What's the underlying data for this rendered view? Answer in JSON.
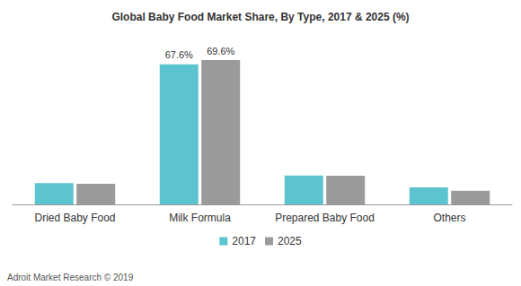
{
  "chart_data": {
    "type": "bar",
    "title": "Global Baby Food Market Share, By Type, 2017 & 2025 (%)",
    "categories": [
      "Dried Baby Food",
      "Milk Formula",
      "Prepared Baby Food",
      "Others"
    ],
    "series": [
      {
        "name": "2017",
        "color": "#5bc4cf",
        "values": [
          10.3,
          67.6,
          13.9,
          8.2
        ],
        "value_labels": [
          null,
          "67.6%",
          null,
          null
        ]
      },
      {
        "name": "2025",
        "color": "#9a9a9a",
        "values": [
          10.0,
          69.6,
          13.8,
          6.6
        ],
        "value_labels": [
          null,
          "69.6%",
          null,
          null
        ]
      }
    ],
    "ylim": [
      0,
      77
    ],
    "grid": false,
    "legend": "bottom",
    "data_labels": true,
    "tick_labels": "x",
    "annotations": [
      "Adroit Market Research © 2019"
    ]
  }
}
